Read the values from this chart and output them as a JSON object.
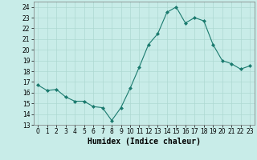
{
  "x": [
    0,
    1,
    2,
    3,
    4,
    5,
    6,
    7,
    8,
    9,
    10,
    11,
    12,
    13,
    14,
    15,
    16,
    17,
    18,
    19,
    20,
    21,
    22,
    23
  ],
  "y": [
    16.7,
    16.2,
    16.3,
    15.6,
    15.2,
    15.2,
    14.7,
    14.6,
    13.4,
    14.6,
    16.4,
    18.4,
    20.5,
    21.5,
    23.5,
    24.0,
    22.5,
    23.0,
    22.7,
    20.5,
    19.0,
    18.7,
    18.2,
    18.5
  ],
  "line_color": "#1a7a6e",
  "marker": "D",
  "marker_size": 2.0,
  "bg_color": "#c8ece8",
  "grid_color": "#aed8d2",
  "grid_minor_color": "#c0e4e0",
  "xlabel": "Humidex (Indice chaleur)",
  "xlim": [
    -0.5,
    23.5
  ],
  "ylim": [
    13,
    24.5
  ],
  "yticks": [
    13,
    14,
    15,
    16,
    17,
    18,
    19,
    20,
    21,
    22,
    23,
    24
  ],
  "xticks": [
    0,
    1,
    2,
    3,
    4,
    5,
    6,
    7,
    8,
    9,
    10,
    11,
    12,
    13,
    14,
    15,
    16,
    17,
    18,
    19,
    20,
    21,
    22,
    23
  ],
  "tick_fontsize": 5.5,
  "xlabel_fontsize": 7.0,
  "linewidth": 0.8
}
